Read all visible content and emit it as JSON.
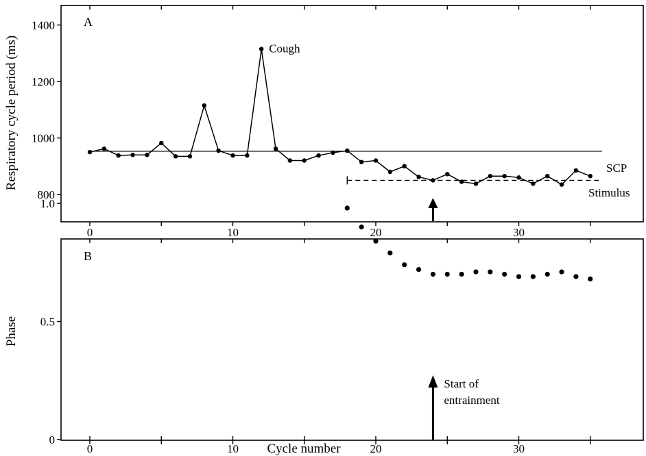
{
  "chart_data": [
    {
      "panel": "A",
      "type": "line",
      "ylabel": "Respiratory cycle period (ms)",
      "xlabel": "",
      "xlim": [
        -2,
        39
      ],
      "ylim": [
        700,
        1470
      ],
      "xticks": [
        0,
        10,
        20,
        30
      ],
      "xtick_labels": [
        "0",
        "10",
        "20",
        "30"
      ],
      "yticks": [
        800,
        1000,
        1200,
        1400
      ],
      "ytick_labels": [
        "800",
        "1000",
        "1200",
        "1400"
      ],
      "x": [
        0,
        1,
        2,
        3,
        4,
        5,
        6,
        7,
        8,
        9,
        10,
        11,
        12,
        13,
        14,
        15,
        16,
        17,
        18,
        19,
        20,
        21,
        22,
        23,
        24,
        25,
        26,
        27,
        28,
        29,
        30,
        31,
        32,
        33,
        34,
        35
      ],
      "values": [
        950,
        962,
        938,
        940,
        940,
        982,
        935,
        935,
        1115,
        955,
        938,
        938,
        1315,
        962,
        920,
        920,
        938,
        948,
        955,
        915,
        920,
        880,
        900,
        862,
        850,
        872,
        845,
        838,
        865,
        865,
        860,
        838,
        865,
        835,
        885,
        865
      ],
      "reference_lines": [
        {
          "label": "SCP",
          "y": 953,
          "x_from": 0,
          "x_to": 38,
          "style": "solid"
        },
        {
          "label": "Stimulus",
          "y": 850,
          "x_from": 18,
          "x_to": 36,
          "style": "dashed"
        }
      ],
      "annotations": [
        {
          "text": "Cough",
          "x": 12,
          "y": 1315
        },
        {
          "text": "SCP"
        },
        {
          "text": "Stimulus"
        }
      ],
      "arrow_x": 24
    },
    {
      "panel": "B",
      "type": "scatter",
      "ylabel": "Phase",
      "xlabel": "Cycle number",
      "xlim": [
        -2,
        39
      ],
      "ylim": [
        0,
        1.22
      ],
      "xticks": [
        0,
        10,
        20,
        30
      ],
      "xtick_labels": [
        "0",
        "10",
        "20",
        "30"
      ],
      "yticks": [
        0,
        0.5,
        1.0
      ],
      "ytick_labels": [
        "0",
        "0.5",
        "1.0"
      ],
      "x": [
        18,
        19,
        20,
        21,
        22,
        23,
        24,
        25,
        26,
        27,
        28,
        29,
        30,
        31,
        32,
        33,
        34,
        35
      ],
      "values": [
        0.98,
        0.9,
        0.84,
        0.79,
        0.74,
        0.72,
        0.7,
        0.7,
        0.7,
        0.71,
        0.71,
        0.7,
        0.69,
        0.69,
        0.7,
        0.71,
        0.69,
        0.68
      ],
      "annotation": {
        "lines": [
          "Start of",
          "entrainment"
        ],
        "x": 24
      }
    }
  ]
}
